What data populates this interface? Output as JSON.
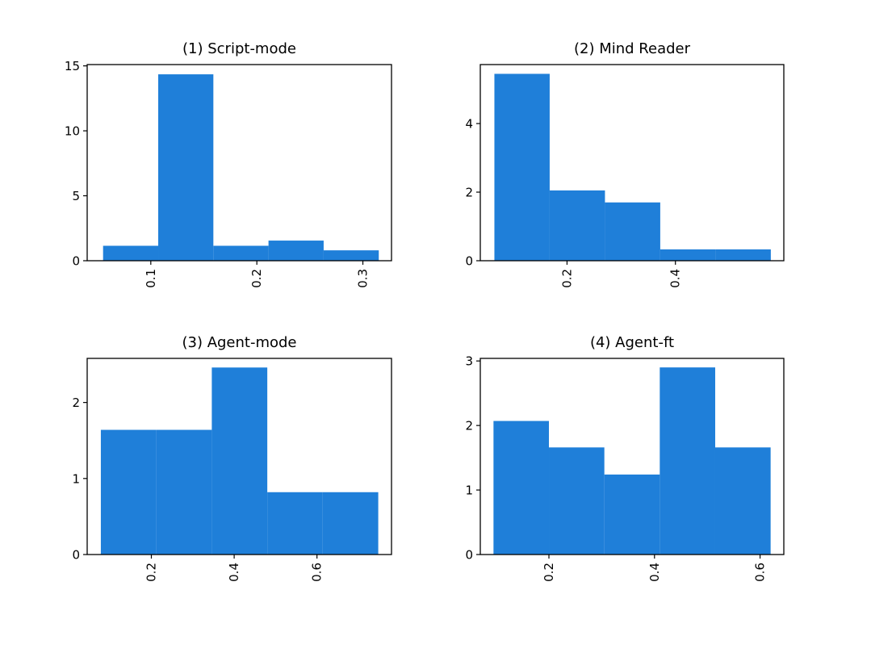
{
  "figure": {
    "bar_color": "#1f7fd9",
    "background": "#ffffff"
  },
  "chart_data": [
    {
      "type": "bar",
      "title": "(1) Script-mode",
      "bin_edges": [
        0.055,
        0.107,
        0.159,
        0.211,
        0.263,
        0.315
      ],
      "values": [
        1.15,
        14.35,
        1.15,
        1.55,
        0.8
      ],
      "xlim": [
        0.04,
        0.327
      ],
      "ylim": [
        0,
        15.1
      ],
      "xticks": [
        0.1,
        0.2,
        0.3
      ],
      "xtick_labels": [
        "0.1",
        "0.2",
        "0.3"
      ],
      "yticks": [
        0,
        5,
        10,
        15
      ],
      "ytick_labels": [
        "0",
        "5",
        "10",
        "15"
      ],
      "xlabel": "",
      "ylabel": "",
      "grid": false
    },
    {
      "type": "bar",
      "title": "(2) Mind Reader",
      "bin_edges": [
        0.066,
        0.168,
        0.27,
        0.372,
        0.474,
        0.576
      ],
      "values": [
        5.45,
        2.05,
        1.7,
        0.33,
        0.33
      ],
      "xlim": [
        0.04,
        0.6
      ],
      "ylim": [
        0,
        5.72
      ],
      "xticks": [
        0.2,
        0.4
      ],
      "xtick_labels": [
        "0.2",
        "0.4"
      ],
      "yticks": [
        0,
        2,
        4
      ],
      "ytick_labels": [
        "0",
        "2",
        "4"
      ],
      "xlabel": "",
      "ylabel": "",
      "grid": false
    },
    {
      "type": "bar",
      "title": "(3) Agent-mode",
      "bin_edges": [
        0.078,
        0.212,
        0.346,
        0.48,
        0.614,
        0.748
      ],
      "values": [
        1.64,
        1.64,
        2.46,
        0.82,
        0.82
      ],
      "xlim": [
        0.045,
        0.78
      ],
      "ylim": [
        0,
        2.58
      ],
      "xticks": [
        0.2,
        0.4,
        0.6
      ],
      "xtick_labels": [
        "0.2",
        "0.4",
        "0.6"
      ],
      "yticks": [
        0,
        1,
        2
      ],
      "ytick_labels": [
        "0",
        "1",
        "2"
      ],
      "xlabel": "",
      "ylabel": "",
      "grid": false
    },
    {
      "type": "bar",
      "title": "(4) Agent-ft",
      "bin_edges": [
        0.095,
        0.2,
        0.305,
        0.41,
        0.515,
        0.62
      ],
      "values": [
        2.07,
        1.66,
        1.24,
        2.9,
        1.66
      ],
      "xlim": [
        0.07,
        0.645
      ],
      "ylim": [
        0,
        3.04
      ],
      "xticks": [
        0.2,
        0.4,
        0.6
      ],
      "xtick_labels": [
        "0.2",
        "0.4",
        "0.6"
      ],
      "yticks": [
        0,
        1,
        2,
        3
      ],
      "ytick_labels": [
        "0",
        "1",
        "2",
        "3"
      ],
      "xlabel": "",
      "ylabel": "",
      "grid": false
    }
  ]
}
